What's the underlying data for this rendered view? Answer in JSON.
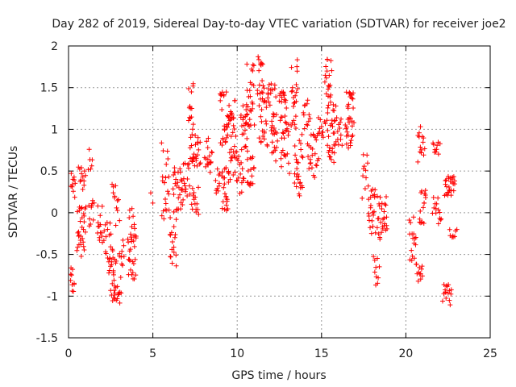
{
  "chart_data": {
    "type": "scatter",
    "title": "Day 282 of 2019, Sidereal Day-to-day VTEC variation (SDTVAR) for receiver joe2",
    "xlabel": "GPS time / hours",
    "ylabel": "SDTVAR / TECUs",
    "xlim": [
      0,
      25
    ],
    "ylim": [
      -1.5,
      2
    ],
    "xticks": [
      "0",
      "5",
      "10",
      "15",
      "20",
      "25"
    ],
    "yticks": [
      "-1.5",
      "-1",
      "-0.5",
      "0",
      "0.5",
      "1",
      "1.5",
      "2"
    ],
    "grid": true,
    "marker": "+",
    "series_color": "#ff0000",
    "series": [
      {
        "name": "SDTVAR",
        "segments": [
          {
            "x0": 0.1,
            "x1": 0.35,
            "ymin": -0.95,
            "ymax": -0.65,
            "n": 10
          },
          {
            "x0": 0.15,
            "x1": 0.4,
            "ymin": 0.15,
            "ymax": 0.5,
            "n": 10
          },
          {
            "x0": 0.5,
            "x1": 1.0,
            "ymin": -0.55,
            "ymax": 0.1,
            "n": 30
          },
          {
            "x0": 0.6,
            "x1": 1.0,
            "ymin": 0.25,
            "ymax": 0.55,
            "n": 12
          },
          {
            "x0": 1.15,
            "x1": 1.4,
            "ymin": 0.5,
            "ymax": 0.78,
            "n": 6
          },
          {
            "x0": 1.2,
            "x1": 1.5,
            "ymin": -0.2,
            "ymax": 0.15,
            "n": 10
          },
          {
            "x0": 1.7,
            "x1": 2.0,
            "ymin": -0.4,
            "ymax": 0.1,
            "n": 14
          },
          {
            "x0": 2.1,
            "x1": 2.5,
            "ymin": -0.6,
            "ymax": -0.1,
            "n": 14
          },
          {
            "x0": 2.4,
            "x1": 2.8,
            "ymin": -1.05,
            "ymax": -0.4,
            "n": 22
          },
          {
            "x0": 2.6,
            "x1": 3.1,
            "ymin": -1.15,
            "ymax": -0.8,
            "n": 16
          },
          {
            "x0": 2.6,
            "x1": 3.0,
            "ymin": -0.2,
            "ymax": 0.35,
            "n": 12
          },
          {
            "x0": 3.0,
            "x1": 3.3,
            "ymin": -0.8,
            "ymax": -0.3,
            "n": 10
          },
          {
            "x0": 3.5,
            "x1": 4.0,
            "ymin": -0.8,
            "ymax": -0.3,
            "n": 22
          },
          {
            "x0": 3.6,
            "x1": 4.0,
            "ymin": -0.3,
            "ymax": 0.1,
            "n": 12
          },
          {
            "x0": 4.9,
            "x1": 5.0,
            "ymin": 0.08,
            "ymax": 0.42,
            "n": 2
          },
          {
            "x0": 5.5,
            "x1": 6.0,
            "ymin": -0.1,
            "ymax": 0.85,
            "n": 22
          },
          {
            "x0": 6.0,
            "x1": 6.4,
            "ymin": -0.65,
            "ymax": -0.05,
            "n": 16
          },
          {
            "x0": 6.2,
            "x1": 6.8,
            "ymin": 0.0,
            "ymax": 0.6,
            "n": 30
          },
          {
            "x0": 6.8,
            "x1": 7.2,
            "ymin": 0.2,
            "ymax": 0.6,
            "n": 14
          },
          {
            "x0": 7.1,
            "x1": 7.4,
            "ymin": 1.0,
            "ymax": 1.55,
            "n": 14
          },
          {
            "x0": 7.2,
            "x1": 7.8,
            "ymin": 0.55,
            "ymax": 0.95,
            "n": 26
          },
          {
            "x0": 7.3,
            "x1": 7.7,
            "ymin": -0.1,
            "ymax": 0.35,
            "n": 14
          },
          {
            "x0": 8.1,
            "x1": 8.5,
            "ymin": 0.45,
            "ymax": 0.9,
            "n": 16
          },
          {
            "x0": 8.7,
            "x1": 9.0,
            "ymin": 0.2,
            "ymax": 0.6,
            "n": 10
          },
          {
            "x0": 9.0,
            "x1": 9.4,
            "ymin": 0.8,
            "ymax": 1.45,
            "n": 22
          },
          {
            "x0": 9.1,
            "x1": 9.5,
            "ymin": 0.0,
            "ymax": 0.6,
            "n": 22
          },
          {
            "x0": 9.4,
            "x1": 9.9,
            "ymin": 0.9,
            "ymax": 1.35,
            "n": 22
          },
          {
            "x0": 9.5,
            "x1": 10.0,
            "ymin": 0.3,
            "ymax": 0.8,
            "n": 18
          },
          {
            "x0": 10.0,
            "x1": 10.4,
            "ymin": 0.2,
            "ymax": 0.75,
            "n": 14
          },
          {
            "x0": 10.2,
            "x1": 10.6,
            "ymin": 0.7,
            "ymax": 1.3,
            "n": 18
          },
          {
            "x0": 10.5,
            "x1": 11.0,
            "ymin": 1.0,
            "ymax": 1.8,
            "n": 30
          },
          {
            "x0": 10.6,
            "x1": 11.0,
            "ymin": 0.3,
            "ymax": 0.8,
            "n": 16
          },
          {
            "x0": 11.2,
            "x1": 11.6,
            "ymin": 1.3,
            "ymax": 1.9,
            "n": 18
          },
          {
            "x0": 11.3,
            "x1": 11.8,
            "ymin": 0.8,
            "ymax": 1.4,
            "n": 22
          },
          {
            "x0": 11.8,
            "x1": 12.3,
            "ymin": 1.0,
            "ymax": 1.55,
            "n": 22
          },
          {
            "x0": 12.0,
            "x1": 12.4,
            "ymin": 0.6,
            "ymax": 1.0,
            "n": 14
          },
          {
            "x0": 12.5,
            "x1": 12.9,
            "ymin": 1.1,
            "ymax": 1.45,
            "n": 18
          },
          {
            "x0": 12.6,
            "x1": 13.1,
            "ymin": 0.4,
            "ymax": 1.1,
            "n": 22
          },
          {
            "x0": 13.2,
            "x1": 13.6,
            "ymin": 0.9,
            "ymax": 1.85,
            "n": 22
          },
          {
            "x0": 13.4,
            "x1": 13.9,
            "ymin": 0.2,
            "ymax": 1.0,
            "n": 26
          },
          {
            "x0": 13.9,
            "x1": 14.3,
            "ymin": 1.0,
            "ymax": 1.35,
            "n": 12
          },
          {
            "x0": 14.2,
            "x1": 14.8,
            "ymin": 0.4,
            "ymax": 0.95,
            "n": 24
          },
          {
            "x0": 14.8,
            "x1": 15.2,
            "ymin": 0.9,
            "ymax": 1.2,
            "n": 12
          },
          {
            "x0": 15.2,
            "x1": 15.6,
            "ymin": 1.3,
            "ymax": 1.85,
            "n": 18
          },
          {
            "x0": 15.3,
            "x1": 15.8,
            "ymin": 0.6,
            "ymax": 1.35,
            "n": 26
          },
          {
            "x0": 15.7,
            "x1": 16.2,
            "ymin": 0.8,
            "ymax": 1.3,
            "n": 18
          },
          {
            "x0": 16.5,
            "x1": 16.9,
            "ymin": 1.25,
            "ymax": 1.45,
            "n": 14
          },
          {
            "x0": 16.4,
            "x1": 16.9,
            "ymin": 0.75,
            "ymax": 1.15,
            "n": 20
          },
          {
            "x0": 17.4,
            "x1": 17.8,
            "ymin": 0.15,
            "ymax": 0.75,
            "n": 12
          },
          {
            "x0": 17.8,
            "x1": 18.2,
            "ymin": -0.3,
            "ymax": 0.3,
            "n": 20
          },
          {
            "x0": 18.1,
            "x1": 18.4,
            "ymin": -0.9,
            "ymax": -0.5,
            "n": 10
          },
          {
            "x0": 18.3,
            "x1": 18.9,
            "ymin": -0.35,
            "ymax": 0.3,
            "n": 28
          },
          {
            "x0": 20.2,
            "x1": 20.6,
            "ymin": -0.6,
            "ymax": 0.05,
            "n": 16
          },
          {
            "x0": 20.6,
            "x1": 21.0,
            "ymin": -0.85,
            "ymax": -0.6,
            "n": 12
          },
          {
            "x0": 20.7,
            "x1": 21.1,
            "ymin": 0.6,
            "ymax": 1.05,
            "n": 14
          },
          {
            "x0": 20.8,
            "x1": 21.2,
            "ymin": -0.15,
            "ymax": 0.5,
            "n": 16
          },
          {
            "x0": 21.6,
            "x1": 22.0,
            "ymin": 0.7,
            "ymax": 0.92,
            "n": 10
          },
          {
            "x0": 21.6,
            "x1": 22.1,
            "ymin": -0.15,
            "ymax": 0.2,
            "n": 14
          },
          {
            "x0": 22.3,
            "x1": 22.9,
            "ymin": 0.2,
            "ymax": 0.45,
            "n": 26
          },
          {
            "x0": 22.2,
            "x1": 22.7,
            "ymin": -1.15,
            "ymax": -0.85,
            "n": 16
          },
          {
            "x0": 22.6,
            "x1": 23.0,
            "ymin": -0.3,
            "ymax": -0.2,
            "n": 8
          }
        ]
      }
    ]
  }
}
